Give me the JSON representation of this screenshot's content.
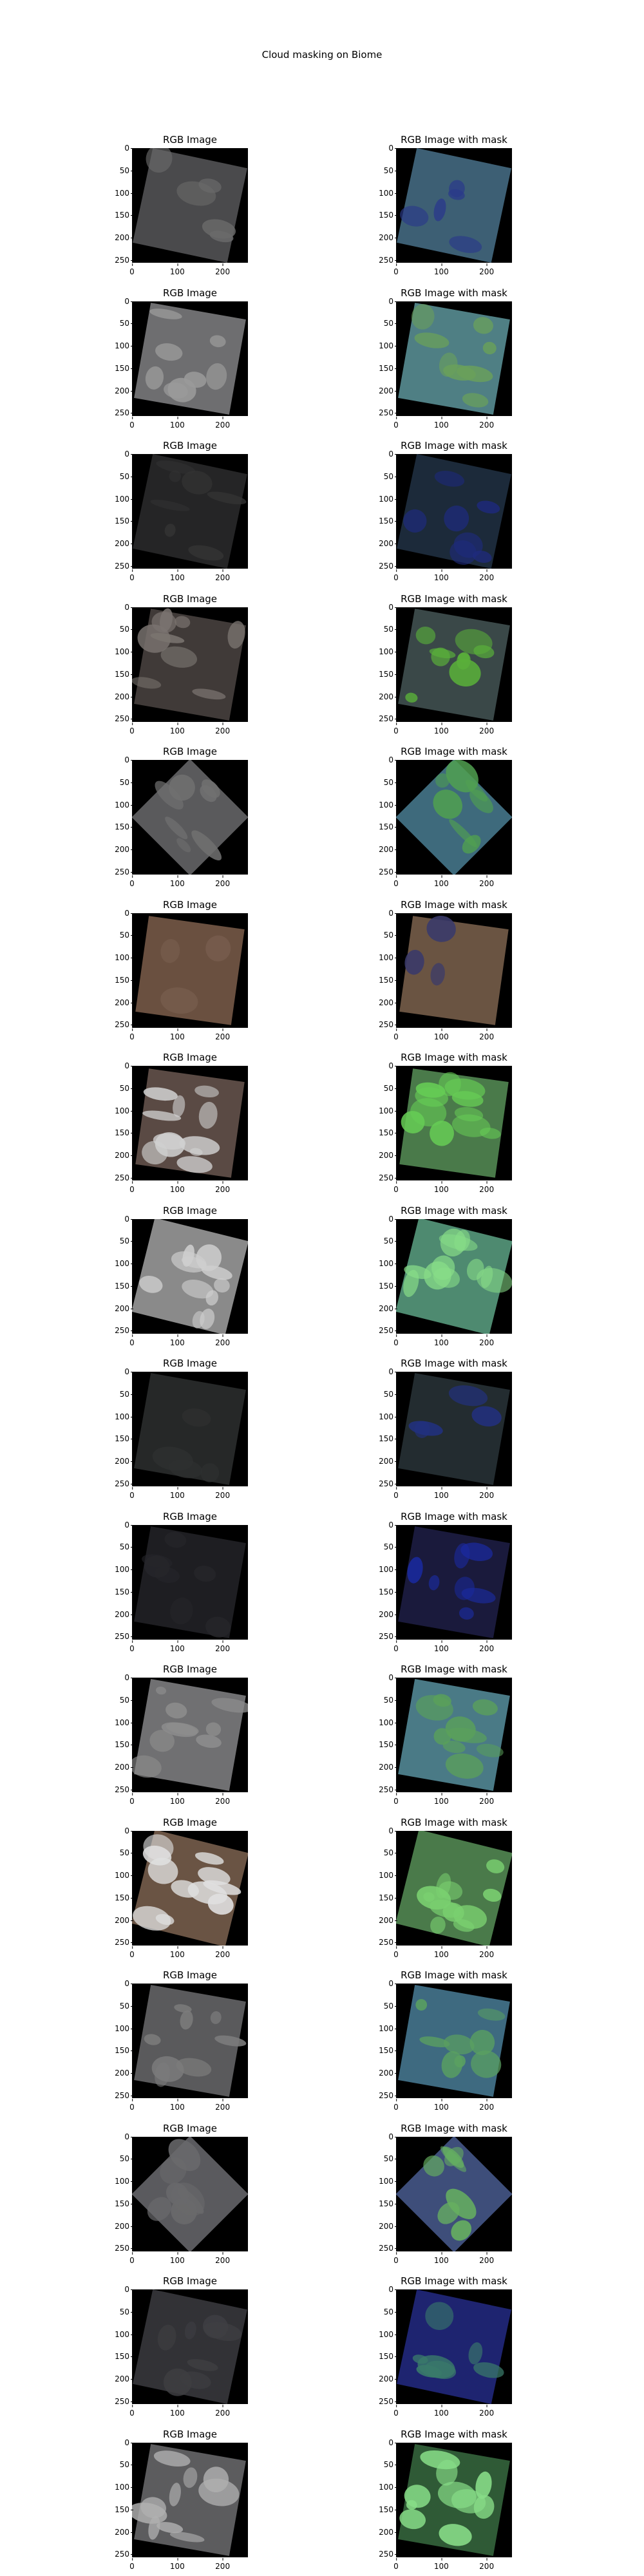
{
  "figure": {
    "suptitle": "Cloud masking on Biome",
    "panel_titles": {
      "rgb": "RGB Image",
      "masked": "RGB Image with mask"
    },
    "y_ticks": [
      "0",
      "50",
      "100",
      "150",
      "200",
      "250"
    ],
    "x_ticks": [
      "0",
      "100",
      "200"
    ],
    "rows": [
      {
        "tilt": 12,
        "rgb_color": "#4a4a4c",
        "mask_color": "#3d5f74",
        "cloud_color": "#6a6a6a",
        "mask_cloud": "#2a3a8a",
        "cloud": 0.15
      },
      {
        "tilt": 10,
        "rgb_color": "#6e6e70",
        "mask_color": "#4f7f84",
        "cloud_color": "#9a9a9a",
        "mask_cloud": "#6aa05a",
        "cloud": 0.35
      },
      {
        "tilt": 12,
        "rgb_color": "#252526",
        "mask_color": "#1c2a3a",
        "cloud_color": "#333333",
        "mask_cloud": "#1e2a7e",
        "cloud": 0.3
      },
      {
        "tilt": 10,
        "rgb_color": "#403a38",
        "mask_color": "#3a4848",
        "cloud_color": "#7a7470",
        "mask_cloud": "#5ab03a",
        "cloud": 0.45
      },
      {
        "tilt": 45,
        "rgb_color": "#5a5a5c",
        "mask_color": "#3e6a7c",
        "cloud_color": "#707070",
        "mask_cloud": "#50a050",
        "cloud": 0.25
      },
      {
        "tilt": 8,
        "rgb_color": "#6a5040",
        "mask_color": "#6a5442",
        "cloud_color": "#7a6050",
        "mask_cloud": "#3a3a6a",
        "cloud": 0.02
      },
      {
        "tilt": 8,
        "rgb_color": "#5a4a44",
        "mask_color": "#4a7a4a",
        "cloud_color": "#d0d0d0",
        "mask_cloud": "#66cc55",
        "cloud": 0.55
      },
      {
        "tilt": 14,
        "rgb_color": "#8a8a8a",
        "mask_color": "#4e8a70",
        "cloud_color": "#cfcfcf",
        "mask_cloud": "#88dd88",
        "cloud": 0.6
      },
      {
        "tilt": 10,
        "rgb_color": "#262828",
        "mask_color": "#232c30",
        "cloud_color": "#2e3030",
        "mask_cloud": "#223080",
        "cloud": 0.1
      },
      {
        "tilt": 10,
        "rgb_color": "#1e1e22",
        "mask_color": "#1a1a3c",
        "cloud_color": "#26262a",
        "mask_cloud": "#1a2aa0",
        "cloud": 0.3
      },
      {
        "tilt": 10,
        "rgb_color": "#707072",
        "mask_color": "#4a7a86",
        "cloud_color": "#8c8c8c",
        "mask_cloud": "#5aa05a",
        "cloud": 0.4
      },
      {
        "tilt": 14,
        "rgb_color": "#6a5444",
        "mask_color": "#4a7a4a",
        "cloud_color": "#e0e0e0",
        "mask_cloud": "#7ad070",
        "cloud": 0.55
      },
      {
        "tilt": 10,
        "rgb_color": "#5a5a5c",
        "mask_color": "#3e6a80",
        "cloud_color": "#7c7c7c",
        "mask_cloud": "#5aa060",
        "cloud": 0.35
      },
      {
        "tilt": 45,
        "rgb_color": "#5a5a5e",
        "mask_color": "#3e4e7a",
        "cloud_color": "#6a6a6c",
        "mask_cloud": "#66b060",
        "cloud": 0.3
      },
      {
        "tilt": 12,
        "rgb_color": "#323236",
        "mask_color": "#1e2470",
        "cloud_color": "#3e3e42",
        "mask_cloud": "#3a7a6a",
        "cloud": 0.3
      },
      {
        "tilt": 10,
        "rgb_color": "#5c5c5e",
        "mask_color": "#2f5a36",
        "cloud_color": "#b0b0b0",
        "mask_cloud": "#88dd88",
        "cloud": 0.5
      }
    ]
  }
}
